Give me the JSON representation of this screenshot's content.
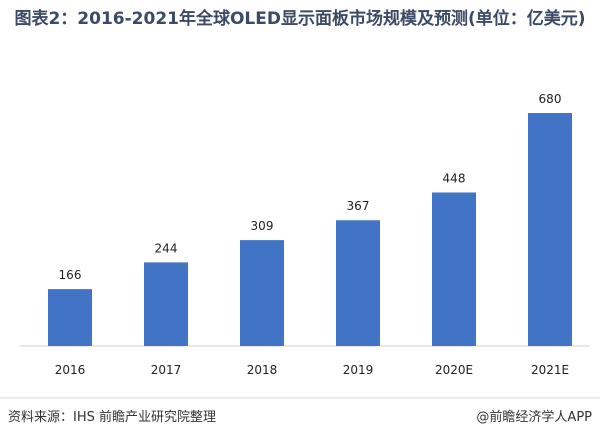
{
  "chart_data": {
    "type": "bar",
    "title": "图表2：2016-2021年全球OLED显示面板市场规模及预测(单位：亿美元)",
    "categories": [
      "2016",
      "2017",
      "2018",
      "2019",
      "2020E",
      "2021E"
    ],
    "values": [
      166,
      244,
      309,
      367,
      448,
      680
    ],
    "color": "#4174c4",
    "source": "资料来源：IHS 前瞻产业研究院整理",
    "brand": "@前瞻经济学人APP"
  }
}
